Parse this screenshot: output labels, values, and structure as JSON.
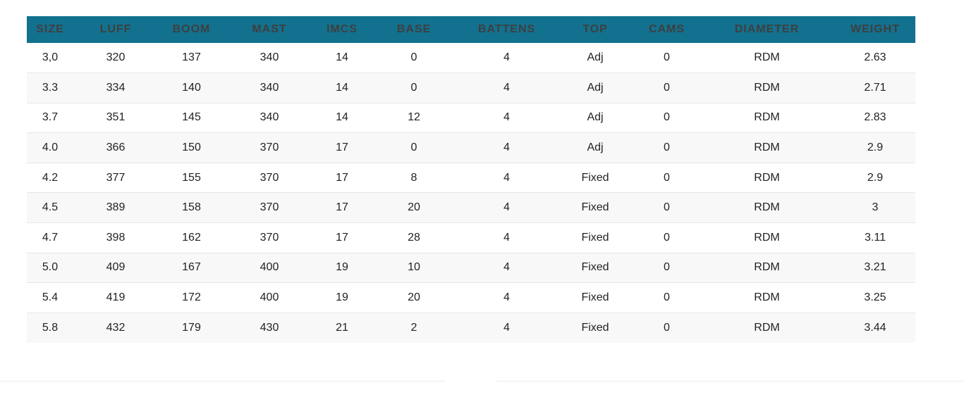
{
  "table": {
    "columns": [
      "SIZE",
      "LUFF",
      "BOOM",
      "MAST",
      "IMCS",
      "BASE",
      "BATTENS",
      "TOP",
      "CAMS",
      "DIAMETER",
      "WEIGHT"
    ],
    "rows": [
      [
        "3,0",
        "320",
        "137",
        "340",
        "14",
        "0",
        "4",
        "Adj",
        "0",
        "RDM",
        "2.63"
      ],
      [
        "3.3",
        "334",
        "140",
        "340",
        "14",
        "0",
        "4",
        "Adj",
        "0",
        "RDM",
        "2.71"
      ],
      [
        "3.7",
        "351",
        "145",
        "340",
        "14",
        "12",
        "4",
        "Adj",
        "0",
        "RDM",
        "2.83"
      ],
      [
        "4.0",
        "366",
        "150",
        "370",
        "17",
        "0",
        "4",
        "Adj",
        "0",
        "RDM",
        "2.9"
      ],
      [
        "4.2",
        "377",
        "155",
        "370",
        "17",
        "8",
        "4",
        "Fixed",
        "0",
        "RDM",
        "2.9"
      ],
      [
        "4.5",
        "389",
        "158",
        "370",
        "17",
        "20",
        "4",
        "Fixed",
        "0",
        "RDM",
        "3"
      ],
      [
        "4.7",
        "398",
        "162",
        "370",
        "17",
        "28",
        "4",
        "Fixed",
        "0",
        "RDM",
        "3.11"
      ],
      [
        "5.0",
        "409",
        "167",
        "400",
        "19",
        "10",
        "4",
        "Fixed",
        "0",
        "RDM",
        "3.21"
      ],
      [
        "5.4",
        "419",
        "172",
        "400",
        "19",
        "20",
        "4",
        "Fixed",
        "0",
        "RDM",
        "3.25"
      ],
      [
        "5.8",
        "432",
        "179",
        "430",
        "21",
        "2",
        "4",
        "Fixed",
        "0",
        "RDM",
        "3.44"
      ]
    ]
  },
  "colors": {
    "header_bg": "#12718f",
    "header_text": "#3f3f3f",
    "row_alt": "#f8f8f8"
  }
}
